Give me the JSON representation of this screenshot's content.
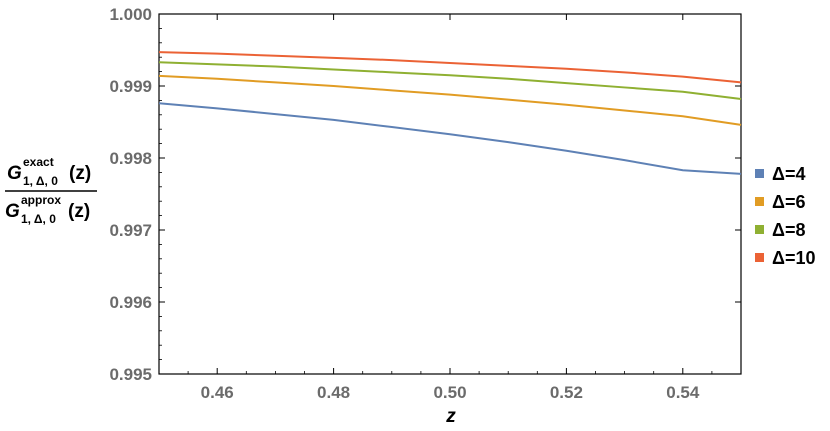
{
  "chart_data": {
    "type": "line",
    "xlabel": "z",
    "ylabel": {
      "numerator": {
        "symbol": "G",
        "superscript": "exact",
        "subscript": "1, Δ, 0",
        "argument": "(z)"
      },
      "denominator": {
        "symbol": "G",
        "superscript": "approx",
        "subscript": "1, Δ, 0",
        "argument": "(z)"
      }
    },
    "xlim": [
      0.45,
      0.55
    ],
    "ylim": [
      0.995,
      1.0
    ],
    "xticks": [
      "0.46",
      "0.48",
      "0.50",
      "0.52",
      "0.54"
    ],
    "xtick_values": [
      0.46,
      0.48,
      0.5,
      0.52,
      0.54
    ],
    "yticks": [
      "0.995",
      "0.996",
      "0.997",
      "0.998",
      "0.999",
      "1.000"
    ],
    "ytick_values": [
      0.995,
      0.996,
      0.997,
      0.998,
      0.999,
      1.0
    ],
    "grid": false,
    "legend_position": "right",
    "series": [
      {
        "name": "Δ=4",
        "color": "#5e81b5",
        "x": [
          0.45,
          0.46,
          0.47,
          0.48,
          0.49,
          0.5,
          0.51,
          0.52,
          0.53,
          0.54,
          0.55
        ],
        "y": [
          0.99876,
          0.99869,
          0.99861,
          0.99853,
          0.99843,
          0.99833,
          0.99822,
          0.9981,
          0.99797,
          0.99783,
          0.99778
        ]
      },
      {
        "name": "Δ=6",
        "color": "#e19c24",
        "x": [
          0.45,
          0.46,
          0.47,
          0.48,
          0.49,
          0.5,
          0.51,
          0.52,
          0.53,
          0.54,
          0.55
        ],
        "y": [
          0.99914,
          0.9991,
          0.99905,
          0.999,
          0.99894,
          0.99888,
          0.99881,
          0.99874,
          0.99866,
          0.99858,
          0.99846
        ]
      },
      {
        "name": "Δ=8",
        "color": "#8fb032",
        "x": [
          0.45,
          0.46,
          0.47,
          0.48,
          0.49,
          0.5,
          0.51,
          0.52,
          0.53,
          0.54,
          0.55
        ],
        "y": [
          0.99933,
          0.9993,
          0.99927,
          0.99923,
          0.99919,
          0.99915,
          0.9991,
          0.99904,
          0.99898,
          0.99892,
          0.99882
        ]
      },
      {
        "name": "Δ=10",
        "color": "#eb6235",
        "x": [
          0.45,
          0.46,
          0.47,
          0.48,
          0.49,
          0.5,
          0.51,
          0.52,
          0.53,
          0.54,
          0.55
        ],
        "y": [
          0.99947,
          0.99945,
          0.99942,
          0.99939,
          0.99936,
          0.99932,
          0.99928,
          0.99924,
          0.99919,
          0.99913,
          0.99905
        ]
      }
    ]
  }
}
